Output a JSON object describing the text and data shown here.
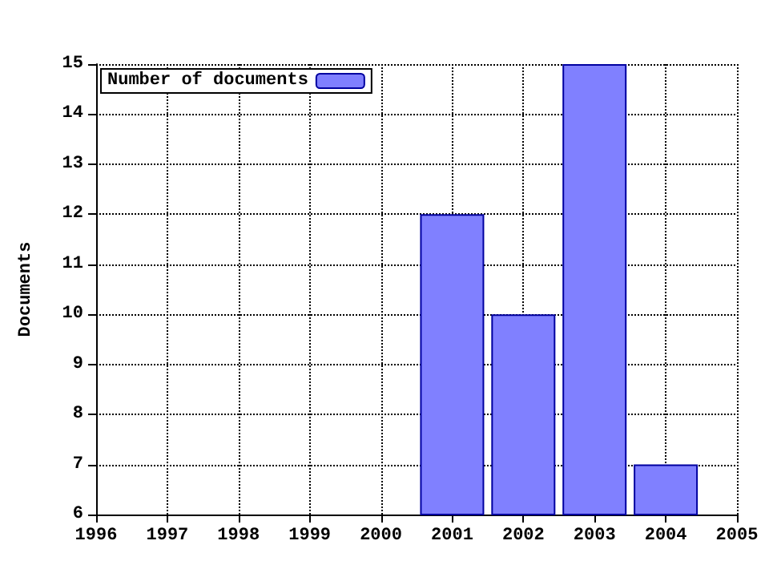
{
  "chart_data": {
    "type": "bar",
    "ylabel": "Documents",
    "x": [
      2001,
      2002,
      2003,
      2004
    ],
    "series": [
      {
        "name": "Number of documents",
        "color": "#8080ff",
        "values": [
          12,
          10,
          15,
          7
        ]
      }
    ],
    "xlim": [
      1996,
      2005
    ],
    "xticks": [
      1996,
      1997,
      1998,
      1999,
      2000,
      2001,
      2002,
      2003,
      2004,
      2005
    ],
    "ylim": [
      6,
      15
    ],
    "yticks": [
      6,
      7,
      8,
      9,
      10,
      11,
      12,
      13,
      14,
      15
    ],
    "grid": true,
    "legend": "top left"
  }
}
